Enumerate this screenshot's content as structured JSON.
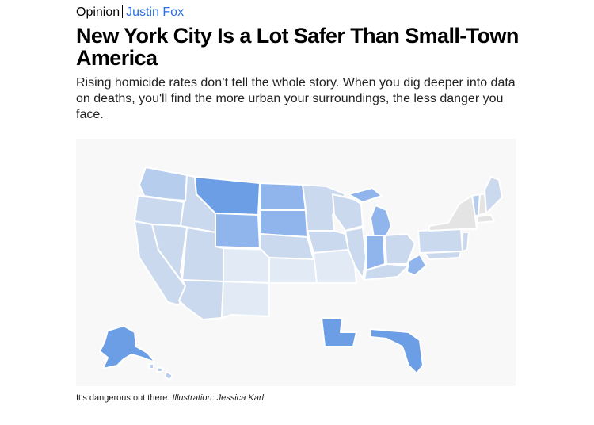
{
  "byline": {
    "section": "Opinion",
    "author": "Justin Fox"
  },
  "headline": "New York City Is a Lot Safer Than Small-Town America",
  "dek": "Rising homicide rates don’t tell the whole story. When you dig deeper into data on deaths, you'll find the more urban your surroundings, the less danger you face.",
  "illustration": {
    "subject": "us-states-map",
    "colors": {
      "darkest": "#6c9ee6",
      "dark": "#8fb5ec",
      "medium": "#b7cdee",
      "light": "#cbd9ee",
      "lightest": "#e1eaf5",
      "gray": "#e4e4e4",
      "background": "#f8f8f8"
    }
  },
  "caption": {
    "text": "It’s dangerous out there.",
    "credit": "Illustration: Jessica Karl"
  }
}
